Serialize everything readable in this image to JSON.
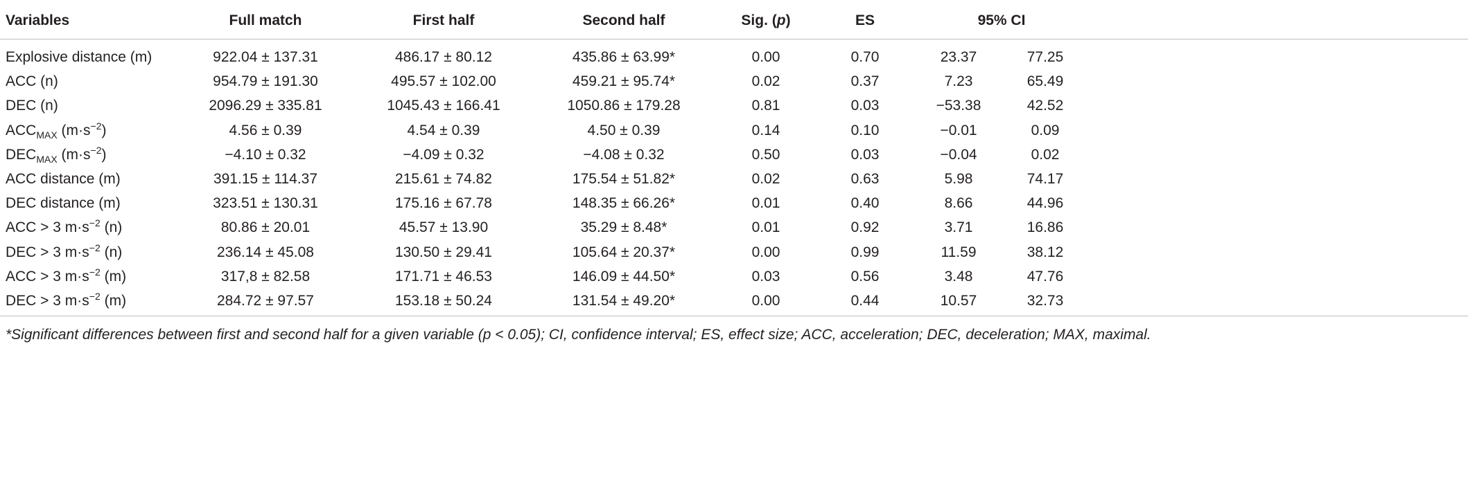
{
  "table": {
    "header": [
      "Variables",
      "Full match",
      "First half",
      "Second half",
      [
        "Sig. (",
        {
          "italic": "p"
        },
        ")"
      ],
      "ES",
      "95% CI"
    ],
    "rows": [
      [
        "Explosive distance (m)",
        "922.04 ± 137.31",
        "486.17 ± 80.12",
        "435.86 ± 63.99*",
        "0.00",
        "0.70",
        "23.37",
        "77.25"
      ],
      [
        "ACC (n)",
        "954.79 ± 191.30",
        "495.57 ± 102.00",
        "459.21 ± 95.74*",
        "0.02",
        "0.37",
        "7.23",
        "65.49"
      ],
      [
        "DEC (n)",
        "2096.29 ± 335.81",
        "1045.43 ± 166.41",
        "1050.86 ± 179.28",
        "0.81",
        "0.03",
        "−53.38",
        "42.52"
      ],
      [
        [
          "ACC",
          {
            "sub": "MAX"
          },
          " (m·s",
          {
            "sup": "−2"
          },
          ")"
        ],
        "4.56 ± 0.39",
        "4.54 ± 0.39",
        "4.50 ± 0.39",
        "0.14",
        "0.10",
        "−0.01",
        "0.09"
      ],
      [
        [
          "DEC",
          {
            "sub": "MAX"
          },
          " (m·s",
          {
            "sup": "−2"
          },
          ")"
        ],
        "−4.10 ± 0.32",
        "−4.09 ± 0.32",
        "−4.08 ± 0.32",
        "0.50",
        "0.03",
        "−0.04",
        "0.02"
      ],
      [
        "ACC distance (m)",
        "391.15 ± 114.37",
        "215.61 ± 74.82",
        "175.54 ± 51.82*",
        "0.02",
        "0.63",
        "5.98",
        "74.17"
      ],
      [
        "DEC distance (m)",
        "323.51 ± 130.31",
        "175.16 ± 67.78",
        "148.35 ± 66.26*",
        "0.01",
        "0.40",
        "8.66",
        "44.96"
      ],
      [
        [
          "ACC > 3 m·s",
          {
            "sup": "−2"
          },
          " (n)"
        ],
        "80.86 ± 20.01",
        "45.57 ± 13.90",
        "35.29 ± 8.48*",
        "0.01",
        "0.92",
        "3.71",
        "16.86"
      ],
      [
        [
          "DEC > 3 m·s",
          {
            "sup": "−2"
          },
          " (n)"
        ],
        "236.14 ± 45.08",
        "130.50 ± 29.41",
        "105.64 ± 20.37*",
        "0.00",
        "0.99",
        "11.59",
        "38.12"
      ],
      [
        [
          "ACC > 3 m·s",
          {
            "sup": "−2"
          },
          " (m)"
        ],
        "317,8 ± 82.58",
        "171.71 ± 46.53",
        "146.09 ± 44.50*",
        "0.03",
        "0.56",
        "3.48",
        "47.76"
      ],
      [
        [
          "DEC > 3 m·s",
          {
            "sup": "−2"
          },
          " (m)"
        ],
        "284.72 ± 97.57",
        "153.18 ± 50.24",
        "131.54 ± 49.20*",
        "0.00",
        "0.44",
        "10.57",
        "32.73"
      ]
    ],
    "footnote": "*Significant differences between first and second half for a given variable (p < 0.05); CI, confidence interval; ES, effect size; ACC, acceleration; DEC, deceleration; MAX, maximal."
  }
}
